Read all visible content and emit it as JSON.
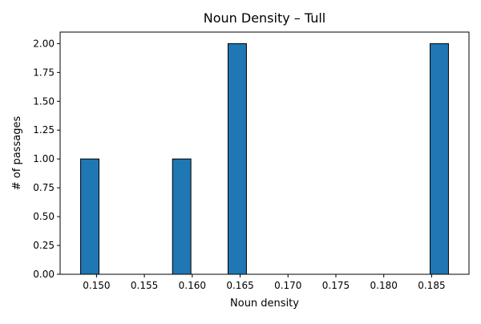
{
  "chart_data": {
    "type": "bar",
    "title": "Noun Density – Tull",
    "xlabel": "Noun density",
    "ylabel": "# of passages",
    "xlim": [
      0.1462,
      0.1889
    ],
    "ylim": [
      0,
      2.1
    ],
    "bin_width": 0.00192,
    "bars": [
      {
        "x": 0.1493,
        "value": 1
      },
      {
        "x": 0.1589,
        "value": 1
      },
      {
        "x": 0.1647,
        "value": 2
      },
      {
        "x": 0.1858,
        "value": 2
      }
    ],
    "x_ticks": [
      {
        "value": 0.15,
        "label": "0.150"
      },
      {
        "value": 0.155,
        "label": "0.155"
      },
      {
        "value": 0.16,
        "label": "0.160"
      },
      {
        "value": 0.165,
        "label": "0.165"
      },
      {
        "value": 0.17,
        "label": "0.170"
      },
      {
        "value": 0.175,
        "label": "0.175"
      },
      {
        "value": 0.18,
        "label": "0.180"
      },
      {
        "value": 0.185,
        "label": "0.185"
      }
    ],
    "y_ticks": [
      {
        "value": 0.0,
        "label": "0.00"
      },
      {
        "value": 0.25,
        "label": "0.25"
      },
      {
        "value": 0.5,
        "label": "0.50"
      },
      {
        "value": 0.75,
        "label": "0.75"
      },
      {
        "value": 1.0,
        "label": "1.00"
      },
      {
        "value": 1.25,
        "label": "1.25"
      },
      {
        "value": 1.5,
        "label": "1.50"
      },
      {
        "value": 1.75,
        "label": "1.75"
      },
      {
        "value": 2.0,
        "label": "2.00"
      }
    ],
    "grid": false,
    "colors": {
      "bar_fill": "#1f77b4",
      "bar_edge": "#000000"
    }
  }
}
